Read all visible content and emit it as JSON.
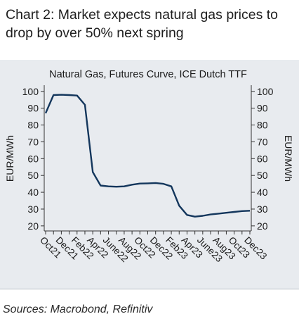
{
  "heading": "Chart 2:  Market expects natural gas prices to drop by over 50% next spring",
  "sources": "Sources: Macrobond,  Refinitiv",
  "colors": {
    "panel": "#e8ebef",
    "line": "#13365c",
    "axis": "#333333"
  },
  "chart_data": {
    "type": "line",
    "title": "Natural Gas, Futures Curve, ICE Dutch TTF",
    "ylabel_left": "EUR/MWh",
    "ylabel_right": "EUR/MWh",
    "ylim": [
      17,
      102
    ],
    "yticks": [
      20,
      30,
      40,
      50,
      60,
      70,
      80,
      90,
      100
    ],
    "grid": false,
    "x_tick_labels": [
      "Oct21",
      "Dec21",
      "Feb22",
      "Apr22",
      "June22",
      "Aug22",
      "Oct22",
      "Dec22",
      "Feb23",
      "Apr23",
      "June23",
      "Aug23",
      "Oct23",
      "Dec23"
    ],
    "categories": [
      "Oct21",
      "Nov21",
      "Dec21",
      "Jan22",
      "Feb22",
      "Mar22",
      "Apr22",
      "May22",
      "June22",
      "Jul22",
      "Aug22",
      "Sep22",
      "Oct22",
      "Nov22",
      "Dec22",
      "Jan23",
      "Feb23",
      "Mar23",
      "Apr23",
      "May23",
      "June23",
      "Jul23",
      "Aug23",
      "Sep23",
      "Oct23",
      "Nov23",
      "Dec23"
    ],
    "series": [
      {
        "values": [
          87,
          97.8,
          98,
          97.8,
          97.5,
          92,
          52,
          44,
          43.5,
          43.3,
          43.5,
          44.5,
          45.2,
          45.3,
          45.5,
          45,
          43.5,
          32,
          26.5,
          25.5,
          26,
          26.8,
          27.3,
          27.8,
          28.3,
          28.8,
          29
        ]
      }
    ]
  }
}
